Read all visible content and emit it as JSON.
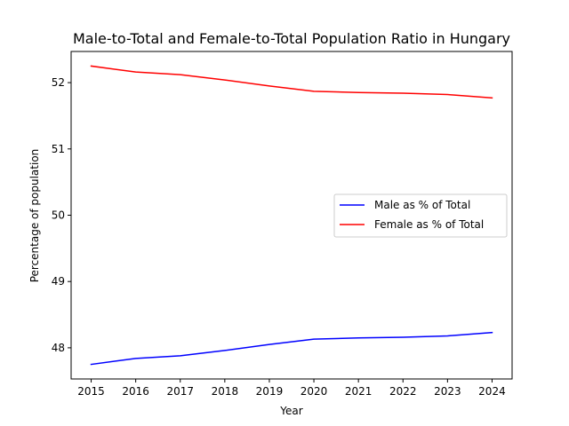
{
  "chart_data": {
    "type": "line",
    "title": "Male-to-Total and Female-to-Total Population Ratio in Hungary",
    "xlabel": "Year",
    "ylabel": "Percentage of population",
    "x": [
      2015,
      2016,
      2017,
      2018,
      2019,
      2020,
      2021,
      2022,
      2023,
      2024
    ],
    "x_ticks": [
      "2015",
      "2016",
      "2017",
      "2018",
      "2019",
      "2020",
      "2021",
      "2022",
      "2023",
      "2024"
    ],
    "xlim": [
      2014.55,
      2024.45
    ],
    "ylim": [
      47.53,
      52.47
    ],
    "y_ticks": [
      48,
      49,
      50,
      51,
      52
    ],
    "grid": false,
    "legend_position": "center-right",
    "series": [
      {
        "name": "Male as % of Total",
        "color": "#0000ff",
        "values": [
          47.75,
          47.84,
          47.88,
          47.96,
          48.05,
          48.13,
          48.15,
          48.16,
          48.18,
          48.23
        ]
      },
      {
        "name": "Female as % of Total",
        "color": "#ff0000",
        "values": [
          52.25,
          52.16,
          52.12,
          52.04,
          51.95,
          51.87,
          51.85,
          51.84,
          51.82,
          51.77
        ]
      }
    ]
  }
}
